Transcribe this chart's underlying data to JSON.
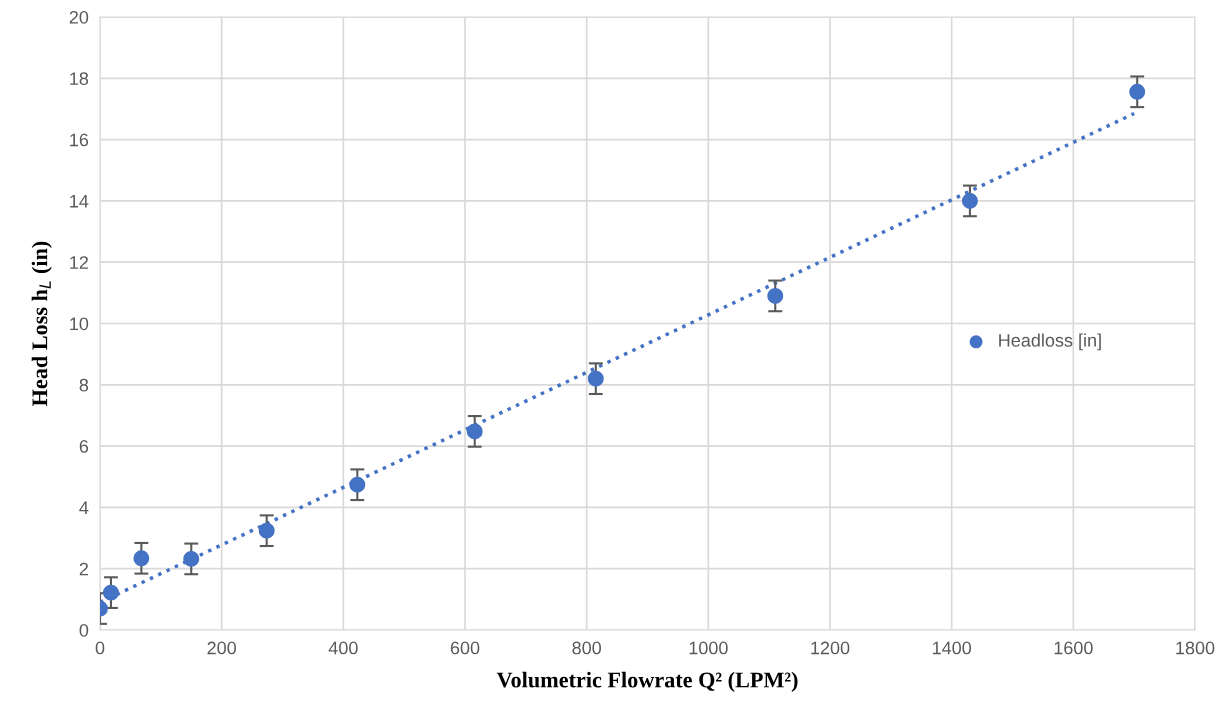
{
  "chart_data": {
    "type": "scatter",
    "xlabel": "Volumetric Flowrate Q² (LPM²)",
    "ylabel": "Head Loss h$_{L}$ (in)",
    "xlim": [
      0,
      1800
    ],
    "xticks": [
      0,
      200,
      400,
      600,
      800,
      1000,
      1200,
      1400,
      1600,
      1800
    ],
    "ylim": [
      0,
      20
    ],
    "yticks": [
      0,
      2,
      4,
      6,
      8,
      10,
      12,
      14,
      16,
      18,
      20
    ],
    "grid": true,
    "legend": "right",
    "marker": "circle",
    "series": [
      {
        "name": "Headloss [in]",
        "color": "#4472c4",
        "x": [
          0,
          18,
          68,
          150,
          274,
          423,
          616,
          815,
          1110,
          1430,
          1705
        ],
        "values": [
          0.7,
          1.22,
          2.34,
          2.32,
          3.24,
          4.74,
          6.48,
          8.2,
          10.9,
          14.0,
          17.56
        ],
        "errors": [
          0.5,
          0.5,
          0.5,
          0.5,
          0.5,
          0.5,
          0.5,
          0.5,
          0.5,
          0.5,
          0.5
        ]
      },
      {
        "type": "line",
        "color": "#4472c4",
        "line_style": "dotted",
        "marker": "none",
        "x": [
          0,
          1700
        ],
        "values": [
          0.9,
          16.85
        ]
      }
    ]
  }
}
